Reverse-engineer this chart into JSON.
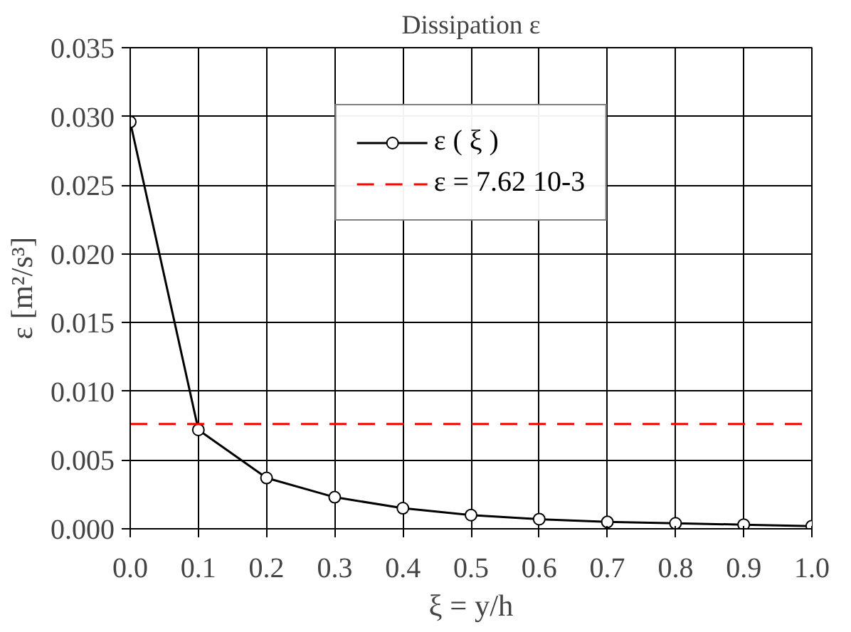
{
  "chart_data": {
    "type": "line",
    "title": "Dissipation ε",
    "xlabel": "ξ = y/h",
    "ylabel": "ε [m²/s³]",
    "x": [
      0.0,
      0.1,
      0.2,
      0.3,
      0.4,
      0.5,
      0.6,
      0.7,
      0.8,
      0.9,
      1.0
    ],
    "series": [
      {
        "name": "ε ( ξ )",
        "color": "#000000",
        "marker": "circle",
        "line_style": "solid",
        "values": [
          0.0296,
          0.0072,
          0.0037,
          0.0023,
          0.0015,
          0.001,
          0.0007,
          0.0005,
          0.0004,
          0.0003,
          0.0002
        ]
      },
      {
        "name": "ε = 7.62 10-3",
        "color": "#ff0000",
        "marker": "none",
        "line_style": "dashed",
        "x": [
          0.0,
          1.0
        ],
        "values": [
          0.00762,
          0.00762
        ]
      }
    ],
    "xlim": [
      0.0,
      1.0
    ],
    "ylim": [
      0.0,
      0.035
    ],
    "xticks": [
      {
        "value": 0.0,
        "label": "0.0"
      },
      0.1,
      0.2,
      0.3,
      0.4,
      0.5,
      0.6,
      0.7,
      0.8,
      0.9,
      {
        "value": 1.0,
        "label": "1.0"
      }
    ],
    "yticks": [
      {
        "value": 0.0,
        "label": "0.000"
      },
      0.005,
      {
        "value": 0.01,
        "label": "0.010"
      },
      0.015,
      {
        "value": 0.02,
        "label": "0.020"
      },
      0.025,
      {
        "value": 0.03,
        "label": "0.030"
      },
      0.035
    ],
    "grid": true,
    "legend": "top"
  }
}
